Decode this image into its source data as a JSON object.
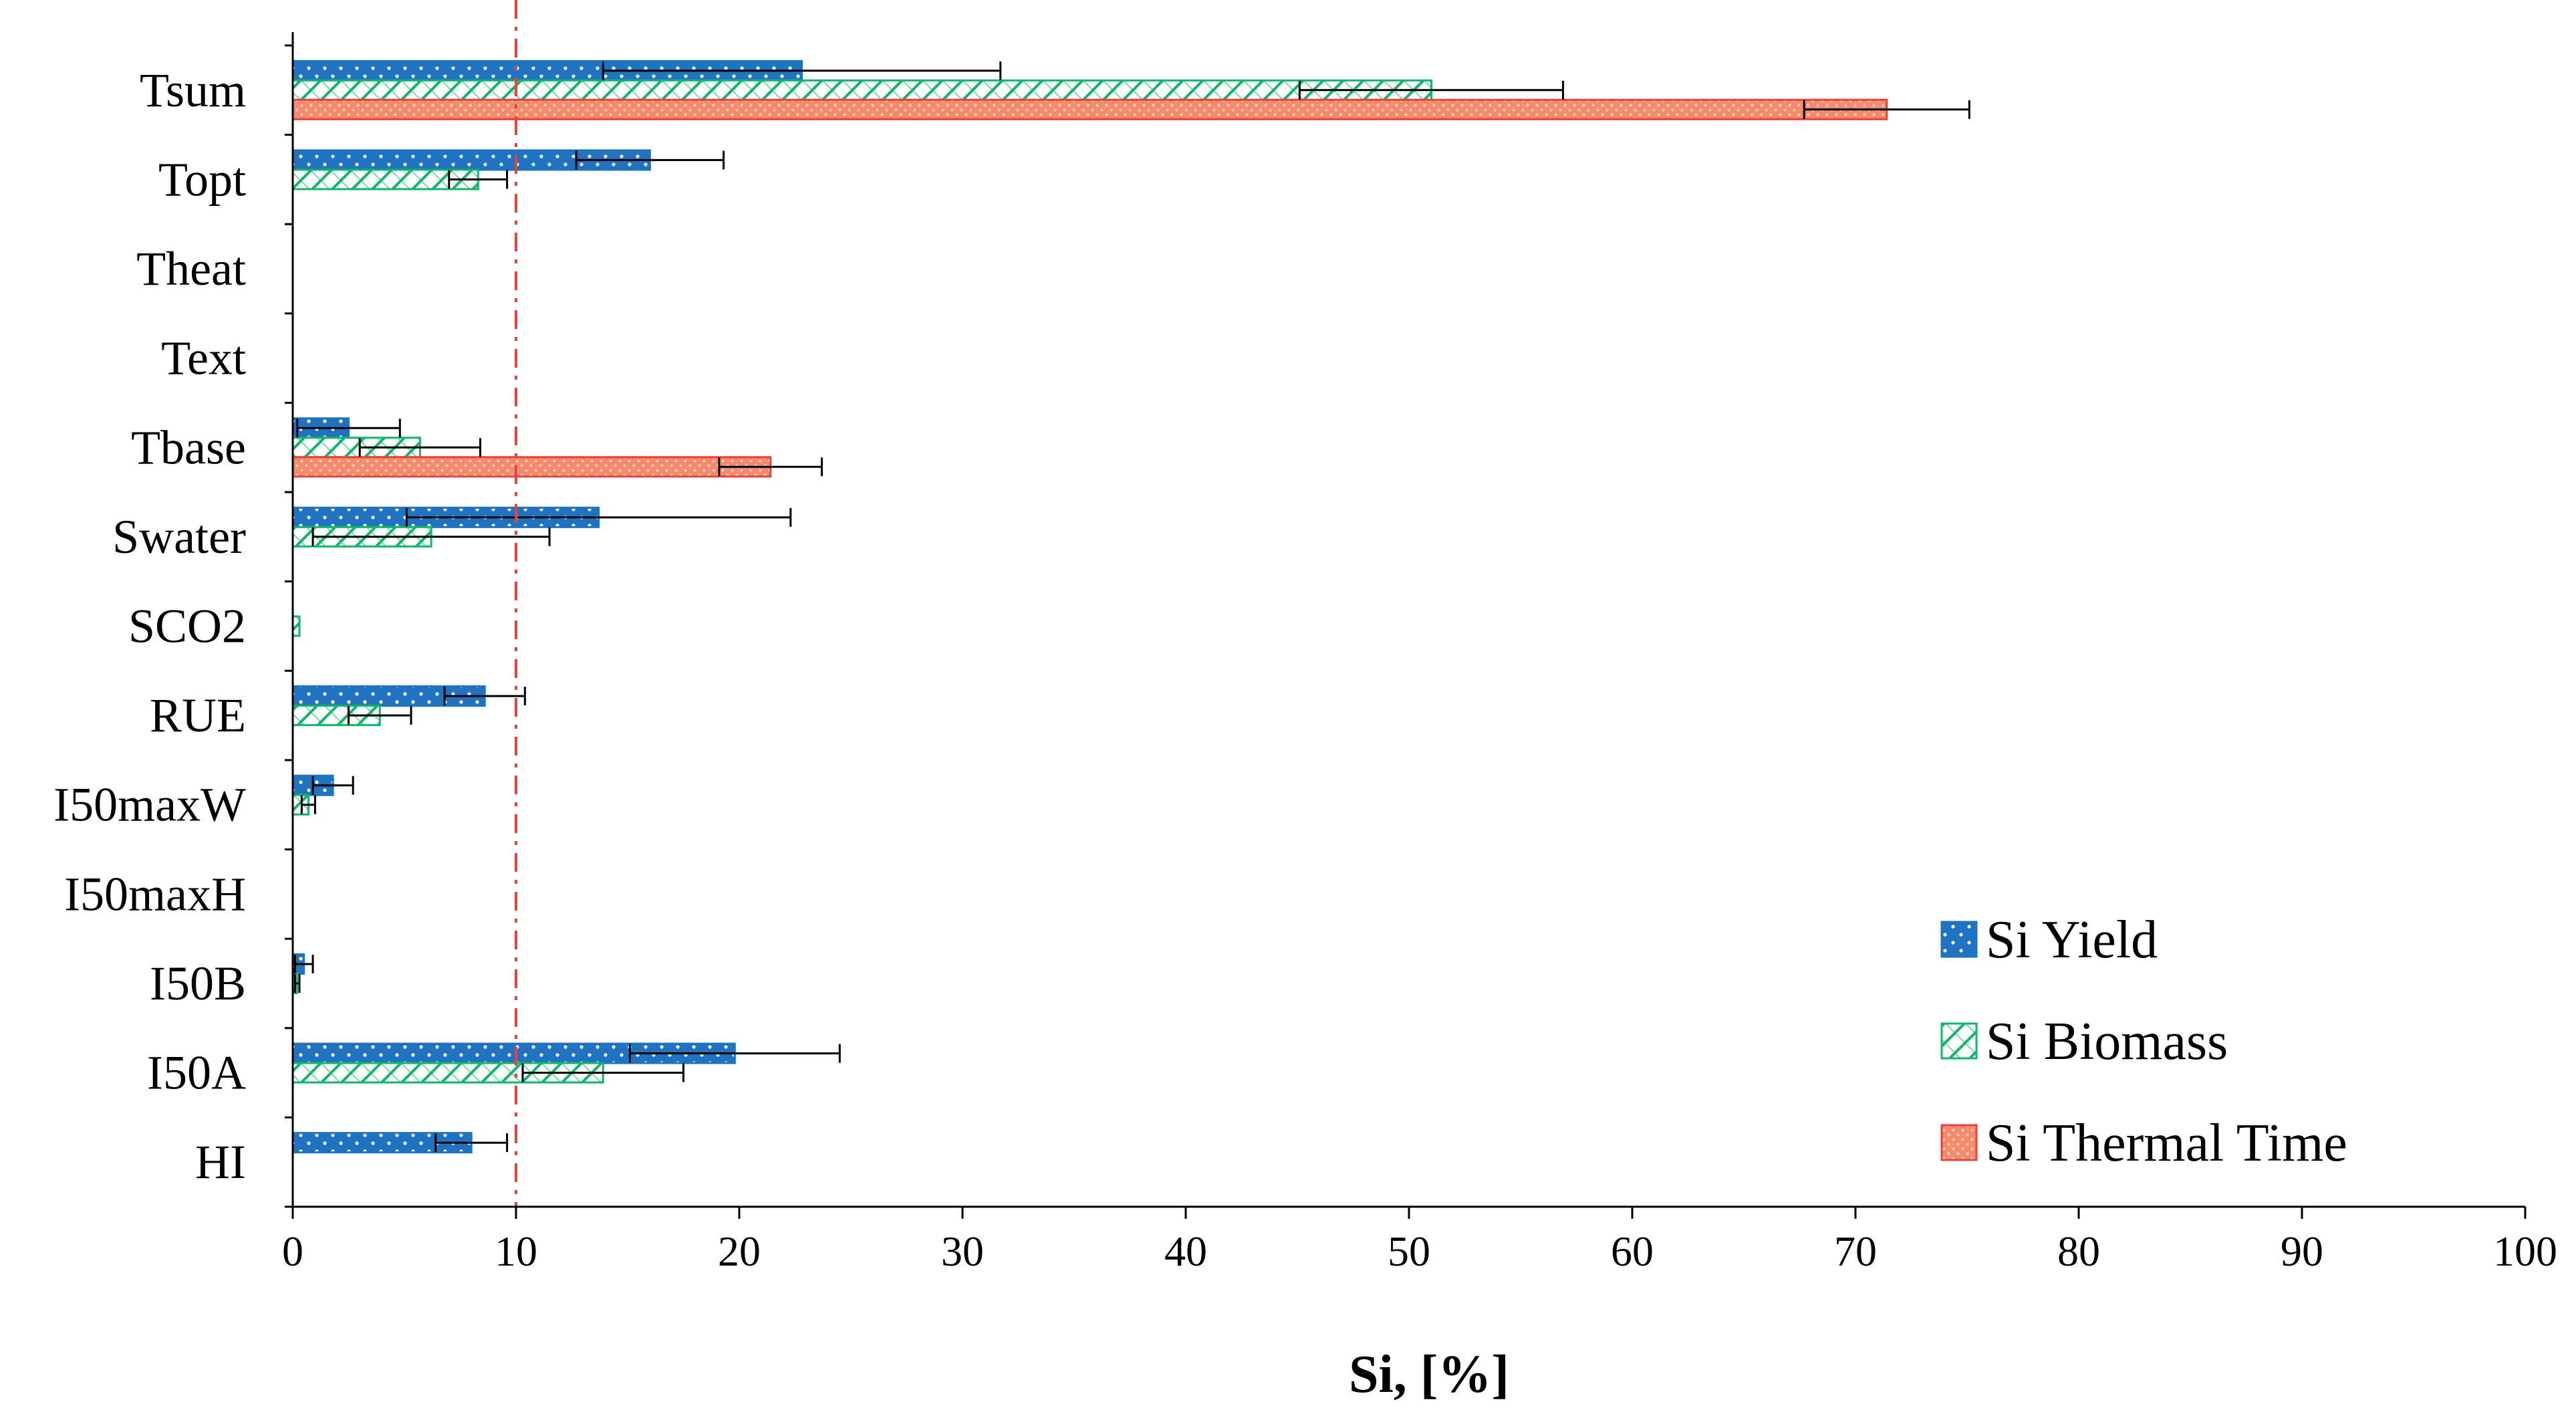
{
  "chart_data": {
    "type": "bar",
    "orientation": "horizontal",
    "title": "",
    "xlabel": "Si, [%]",
    "ylabel": "",
    "xlim": [
      0,
      100
    ],
    "xticks": [
      0,
      10,
      20,
      30,
      40,
      50,
      60,
      70,
      80,
      90,
      100
    ],
    "grid": false,
    "legend_position": "bottom-right",
    "reference_line": {
      "x": 10,
      "style": "dash-dot",
      "color": "#e8423a"
    },
    "categories": [
      "Tsum",
      "Topt",
      "Theat",
      "Text",
      "Tbase",
      "Swater",
      "SCO2",
      "RUE",
      "I50maxW",
      "I50maxH",
      "I50B",
      "I50A",
      "HI"
    ],
    "series": [
      {
        "name": "Si Yield",
        "color": "#1f73c0",
        "pattern": "dots",
        "values": [
          22.8,
          16.0,
          0,
          0,
          2.5,
          13.7,
          0,
          8.6,
          1.8,
          0,
          0.5,
          19.8,
          8.0
        ],
        "errors": [
          8.9,
          3.3,
          0,
          0,
          2.3,
          8.6,
          0,
          1.8,
          0.9,
          0,
          0.4,
          4.7,
          1.6
        ]
      },
      {
        "name": "Si Biomass",
        "color": "#10b66a",
        "pattern": "diagonal",
        "values": [
          51.0,
          8.3,
          0,
          0,
          5.7,
          6.2,
          0.3,
          3.9,
          0.7,
          0,
          0.2,
          13.9,
          0
        ],
        "errors": [
          5.9,
          1.3,
          0,
          0,
          2.7,
          5.3,
          0,
          1.4,
          0.3,
          0,
          0.1,
          3.6,
          0
        ]
      },
      {
        "name": "Si Thermal Time",
        "color": "#e8423a",
        "pattern": "stipple",
        "values": [
          71.4,
          0,
          0,
          0,
          21.4,
          0,
          0,
          0,
          0,
          0,
          0,
          0,
          0
        ],
        "errors": [
          3.7,
          0,
          0,
          0,
          2.3,
          0,
          0,
          0,
          0,
          0,
          0,
          0,
          0
        ]
      }
    ]
  }
}
